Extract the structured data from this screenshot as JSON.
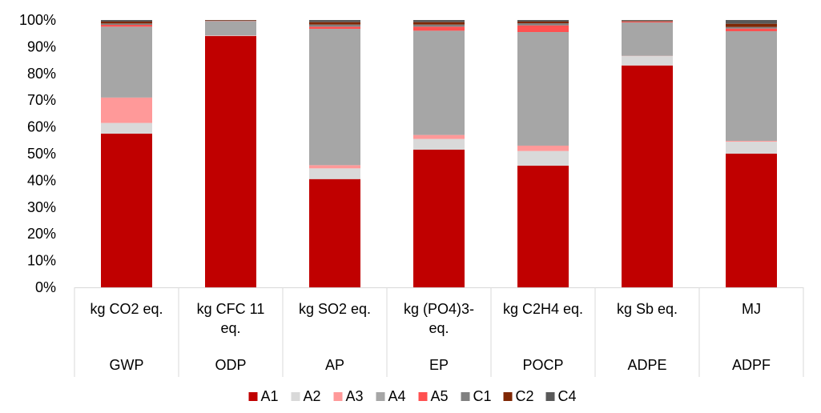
{
  "chart_data": {
    "type": "bar",
    "stacked": true,
    "normalized": true,
    "categories": [
      {
        "unit": "kg CO2 eq.",
        "indicator": "GWP"
      },
      {
        "unit": "kg CFC 11 eq.",
        "indicator": "ODP"
      },
      {
        "unit": "kg SO2 eq.",
        "indicator": "AP"
      },
      {
        "unit": "kg (PO4)3- eq.",
        "indicator": "EP"
      },
      {
        "unit": "kg C2H4 eq.",
        "indicator": "POCP"
      },
      {
        "unit": "kg Sb eq.",
        "indicator": "ADPE"
      },
      {
        "unit": "MJ",
        "indicator": "ADPF"
      }
    ],
    "series": [
      {
        "name": "A1",
        "color": "#c00000",
        "values": [
          57.5,
          94.0,
          40.5,
          51.5,
          45.5,
          83.0,
          50.0
        ]
      },
      {
        "name": "A2",
        "color": "#d9d9d9",
        "values": [
          4.0,
          0.1,
          4.0,
          4.0,
          5.5,
          3.5,
          4.5
        ]
      },
      {
        "name": "A3",
        "color": "#ff9999",
        "values": [
          9.5,
          0.1,
          1.2,
          1.5,
          2.0,
          0.1,
          0.3
        ]
      },
      {
        "name": "A4",
        "color": "#a6a6a6",
        "values": [
          26.5,
          5.3,
          51.0,
          39.0,
          42.5,
          12.5,
          41.0
        ]
      },
      {
        "name": "A5",
        "color": "#ff5050",
        "values": [
          0.7,
          0.1,
          0.8,
          1.5,
          2.5,
          0.3,
          1.0
        ]
      },
      {
        "name": "C1",
        "color": "#808080",
        "values": [
          0.5,
          0.1,
          0.8,
          0.8,
          0.8,
          0.2,
          0.6
        ]
      },
      {
        "name": "C2",
        "color": "#7f2704",
        "values": [
          0.7,
          0.2,
          0.9,
          0.9,
          0.6,
          0.2,
          1.2
        ]
      },
      {
        "name": "C4",
        "color": "#595959",
        "values": [
          0.6,
          0.1,
          0.8,
          0.8,
          0.6,
          0.2,
          1.4
        ]
      }
    ],
    "ylim": [
      0,
      100
    ],
    "yticks": [
      "0%",
      "10%",
      "20%",
      "30%",
      "40%",
      "50%",
      "60%",
      "70%",
      "80%",
      "90%",
      "100%"
    ],
    "grid": false,
    "legend_position": "bottom"
  }
}
